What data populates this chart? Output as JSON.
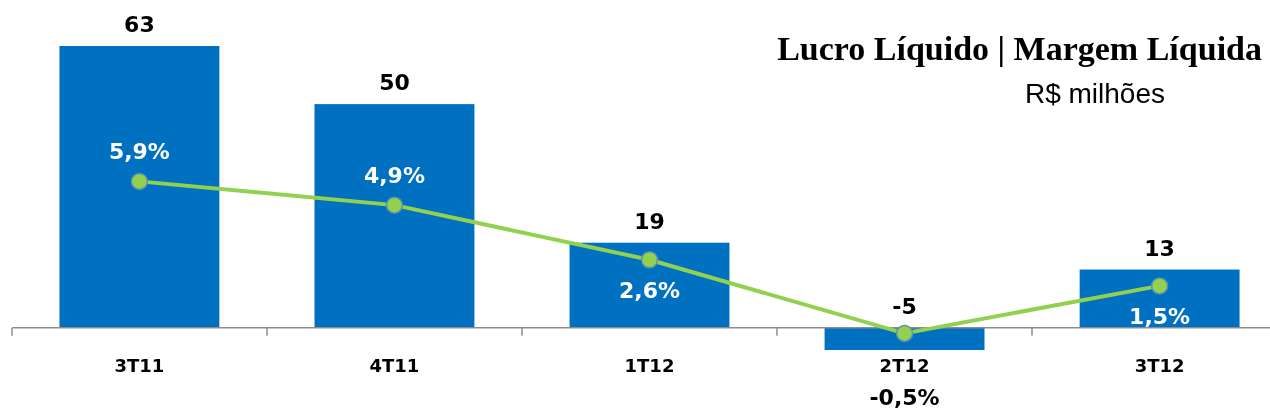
{
  "chart_data": {
    "type": "bar",
    "title": "Lucro Líquido | Margem Líquida",
    "subtitle": "R$ milhões",
    "categories": [
      "3T11",
      "4T11",
      "1T12",
      "2T12",
      "3T12"
    ],
    "series": [
      {
        "color": "#0070c0",
        "values": [
          63,
          50,
          19,
          -5,
          13
        ],
        "value_labels": [
          "63",
          "50",
          "19",
          "-5",
          "13"
        ]
      },
      {
        "type": "line",
        "axis": "y2",
        "color": "#92d050",
        "marker": "circle",
        "values": [
          5.9,
          4.9,
          2.6,
          -0.5,
          1.5
        ],
        "value_labels": [
          "5,9%",
          "4,9%",
          "2,6%",
          "-0,5%",
          "1,5%"
        ]
      }
    ],
    "ylim": [
      -5,
      63
    ],
    "y2lim": [
      -1.2,
      11.6
    ],
    "tick_labels": "x"
  }
}
